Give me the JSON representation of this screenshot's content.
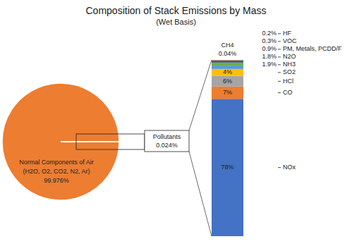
{
  "chart_data": [
    {
      "type": "pie",
      "title": "Composition of Stack Emissions by Mass",
      "subtitle": "(Wet Basis)",
      "categories": [
        "Normal Components of Air (H2O, O2, CO2, N2, Ar)",
        "Pollutants"
      ],
      "values": [
        99.976,
        0.024
      ],
      "value_labels": [
        "99.976%",
        "0.024%"
      ],
      "colors": [
        "#ed7d31",
        "#ed7d31"
      ],
      "data_labels": true
    },
    {
      "type": "bar",
      "stacked": true,
      "categories": [
        null
      ],
      "series": [
        {
          "name": "NOx",
          "color": "#4472c4",
          "values": [
            78
          ],
          "value_labels": [
            "78%"
          ]
        },
        {
          "name": "CO",
          "color": "#ed7d31",
          "values": [
            7
          ],
          "value_labels": [
            "7%"
          ]
        },
        {
          "name": "HCl",
          "color": "#a5a5a5",
          "values": [
            6
          ],
          "value_labels": [
            "6%"
          ]
        },
        {
          "name": "SO2",
          "color": "#ffc000",
          "values": [
            4
          ],
          "value_labels": [
            "4%"
          ]
        },
        {
          "name": "NH3",
          "color": "#5b9bd5",
          "values": [
            1.9
          ],
          "value_labels": [
            "1.9%"
          ]
        },
        {
          "name": "N2O",
          "color": "#70ad47",
          "values": [
            1.8
          ],
          "value_labels": [
            "1.8%"
          ]
        },
        {
          "name": "PM, Metals, PCDD/F",
          "color": "#264478",
          "values": [
            0.9
          ],
          "value_labels": [
            "0.9%"
          ]
        },
        {
          "name": "VOC",
          "color": "#9e480e",
          "values": [
            0.3
          ],
          "value_labels": [
            "0.3%"
          ]
        },
        {
          "name": "HF",
          "color": "#636363",
          "values": [
            0.2
          ],
          "value_labels": [
            "0.2%"
          ]
        },
        {
          "name": "CH4",
          "color": "#997300",
          "values": [
            0.04
          ],
          "value_labels": [
            "0.04%"
          ]
        }
      ],
      "ylim": [
        0,
        100.14
      ],
      "tick_labels": false,
      "data_labels": true
    }
  ]
}
